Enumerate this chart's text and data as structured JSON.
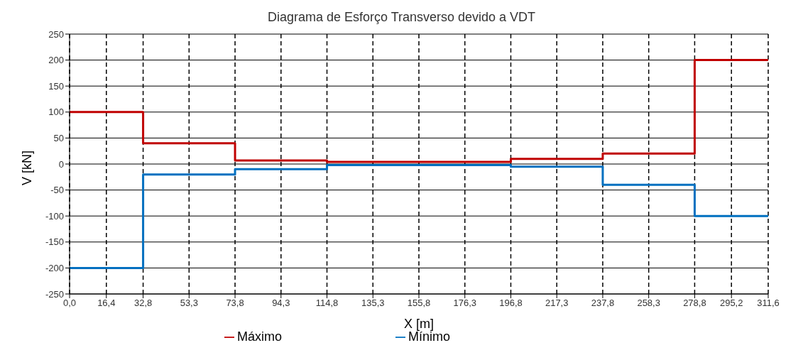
{
  "chart_data": {
    "type": "step",
    "title": "Diagrama de Esforço Transverso devido a VDT",
    "xlabel": "X [m]",
    "ylabel": "V [kN]",
    "x": [
      0,
      32.8,
      73.8,
      114.8,
      196.8,
      237.8,
      278.8,
      311.6
    ],
    "series": [
      {
        "name": "Máximo",
        "color": "#c00000",
        "values": [
          100,
          40,
          7,
          4,
          10,
          20,
          200,
          200
        ]
      },
      {
        "name": "Mínimo",
        "color": "#0070c0",
        "values": [
          -200,
          -20,
          -10,
          -2,
          -5,
          -40,
          -100,
          -100
        ]
      }
    ],
    "xlim": [
      0,
      311.6
    ],
    "xticks": [
      {
        "value": 0,
        "label": "0,0"
      },
      {
        "value": 16.4,
        "label": "16,4"
      },
      {
        "value": 32.8,
        "label": "32,8"
      },
      {
        "value": 53.3,
        "label": "53,3"
      },
      {
        "value": 73.8,
        "label": "73,8"
      },
      {
        "value": 94.3,
        "label": "94,3"
      },
      {
        "value": 114.8,
        "label": "114,8"
      },
      {
        "value": 135.3,
        "label": "135,3"
      },
      {
        "value": 155.8,
        "label": "155,8"
      },
      {
        "value": 176.3,
        "label": "176,3"
      },
      {
        "value": 196.8,
        "label": "196,8"
      },
      {
        "value": 217.3,
        "label": "217,3"
      },
      {
        "value": 237.8,
        "label": "237,8"
      },
      {
        "value": 258.3,
        "label": "258,3"
      },
      {
        "value": 278.8,
        "label": "278,8"
      },
      {
        "value": 295.2,
        "label": "295,2"
      },
      {
        "value": 311.6,
        "label": "311,6"
      }
    ],
    "ylim": [
      -250,
      250
    ],
    "yticks": [
      -250,
      -200,
      -150,
      -100,
      -50,
      0,
      50,
      100,
      150,
      200,
      250
    ],
    "grid": true,
    "legend": "bottom",
    "marker": "none",
    "line_style": "solid"
  }
}
